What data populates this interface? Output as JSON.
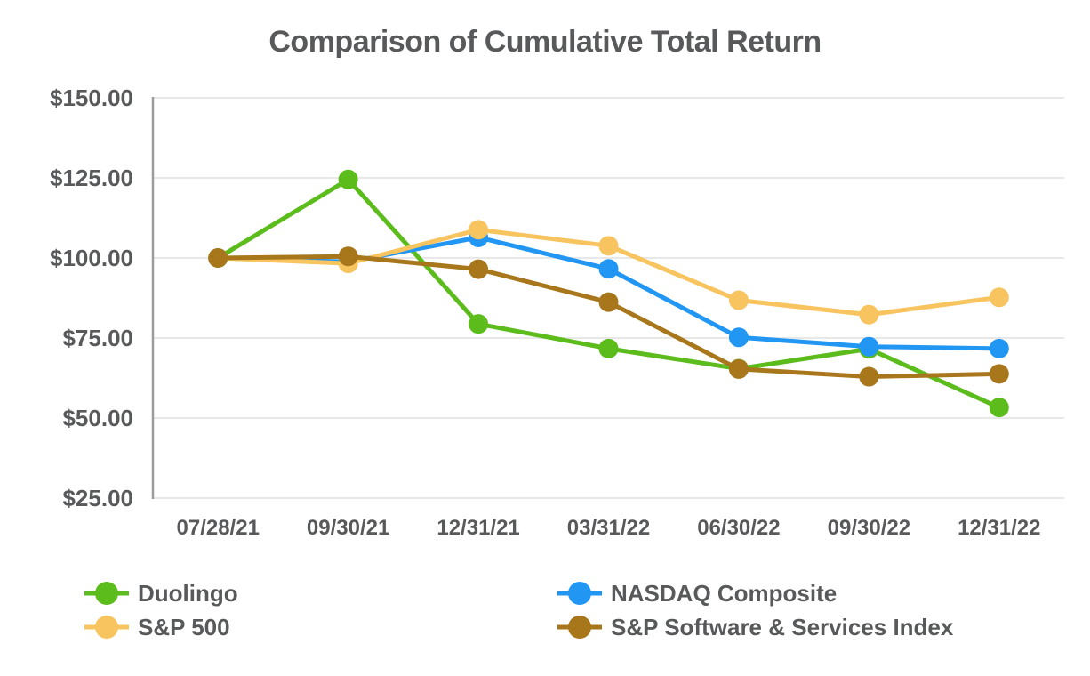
{
  "chart_data": {
    "type": "line",
    "title": "Comparison of Cumulative Total Return",
    "x_labels": [
      "07/28/21",
      "09/30/21",
      "12/31/21",
      "03/31/22",
      "06/30/22",
      "09/30/22",
      "12/31/22"
    ],
    "series": [
      {
        "name": "Duolingo",
        "color": "#5BBC1C",
        "values": [
          100.0,
          124.5,
          79.4,
          71.7,
          65.4,
          71.6,
          53.3
        ]
      },
      {
        "name": "NASDAQ Composite",
        "color": "#2196F3",
        "values": [
          100.0,
          98.8,
          106.4,
          96.6,
          75.2,
          72.3,
          71.7
        ]
      },
      {
        "name": "S&P 500",
        "color": "#F7C45F",
        "values": [
          100.0,
          98.3,
          108.8,
          103.8,
          86.8,
          82.3,
          87.7
        ]
      },
      {
        "name": "S&P Software & Services Index",
        "color": "#A8771B",
        "values": [
          100.0,
          100.5,
          96.5,
          86.2,
          65.3,
          62.9,
          63.8
        ]
      }
    ],
    "ylim": [
      25,
      150
    ],
    "ytick_step": 25,
    "ytick_labels": [
      "$25.00",
      "$50.00",
      "$75.00",
      "$100.00",
      "$125.00",
      "$150.00"
    ],
    "xlabel": "",
    "ylabel": "",
    "grid": "horizontal",
    "legend_position": "bottom",
    "legend_columns": 2
  },
  "colors": {
    "text": "#58595B",
    "grid_line": "#E8E8E8",
    "axis_line": "#9A9C9E",
    "background": "#FFFFFF"
  }
}
